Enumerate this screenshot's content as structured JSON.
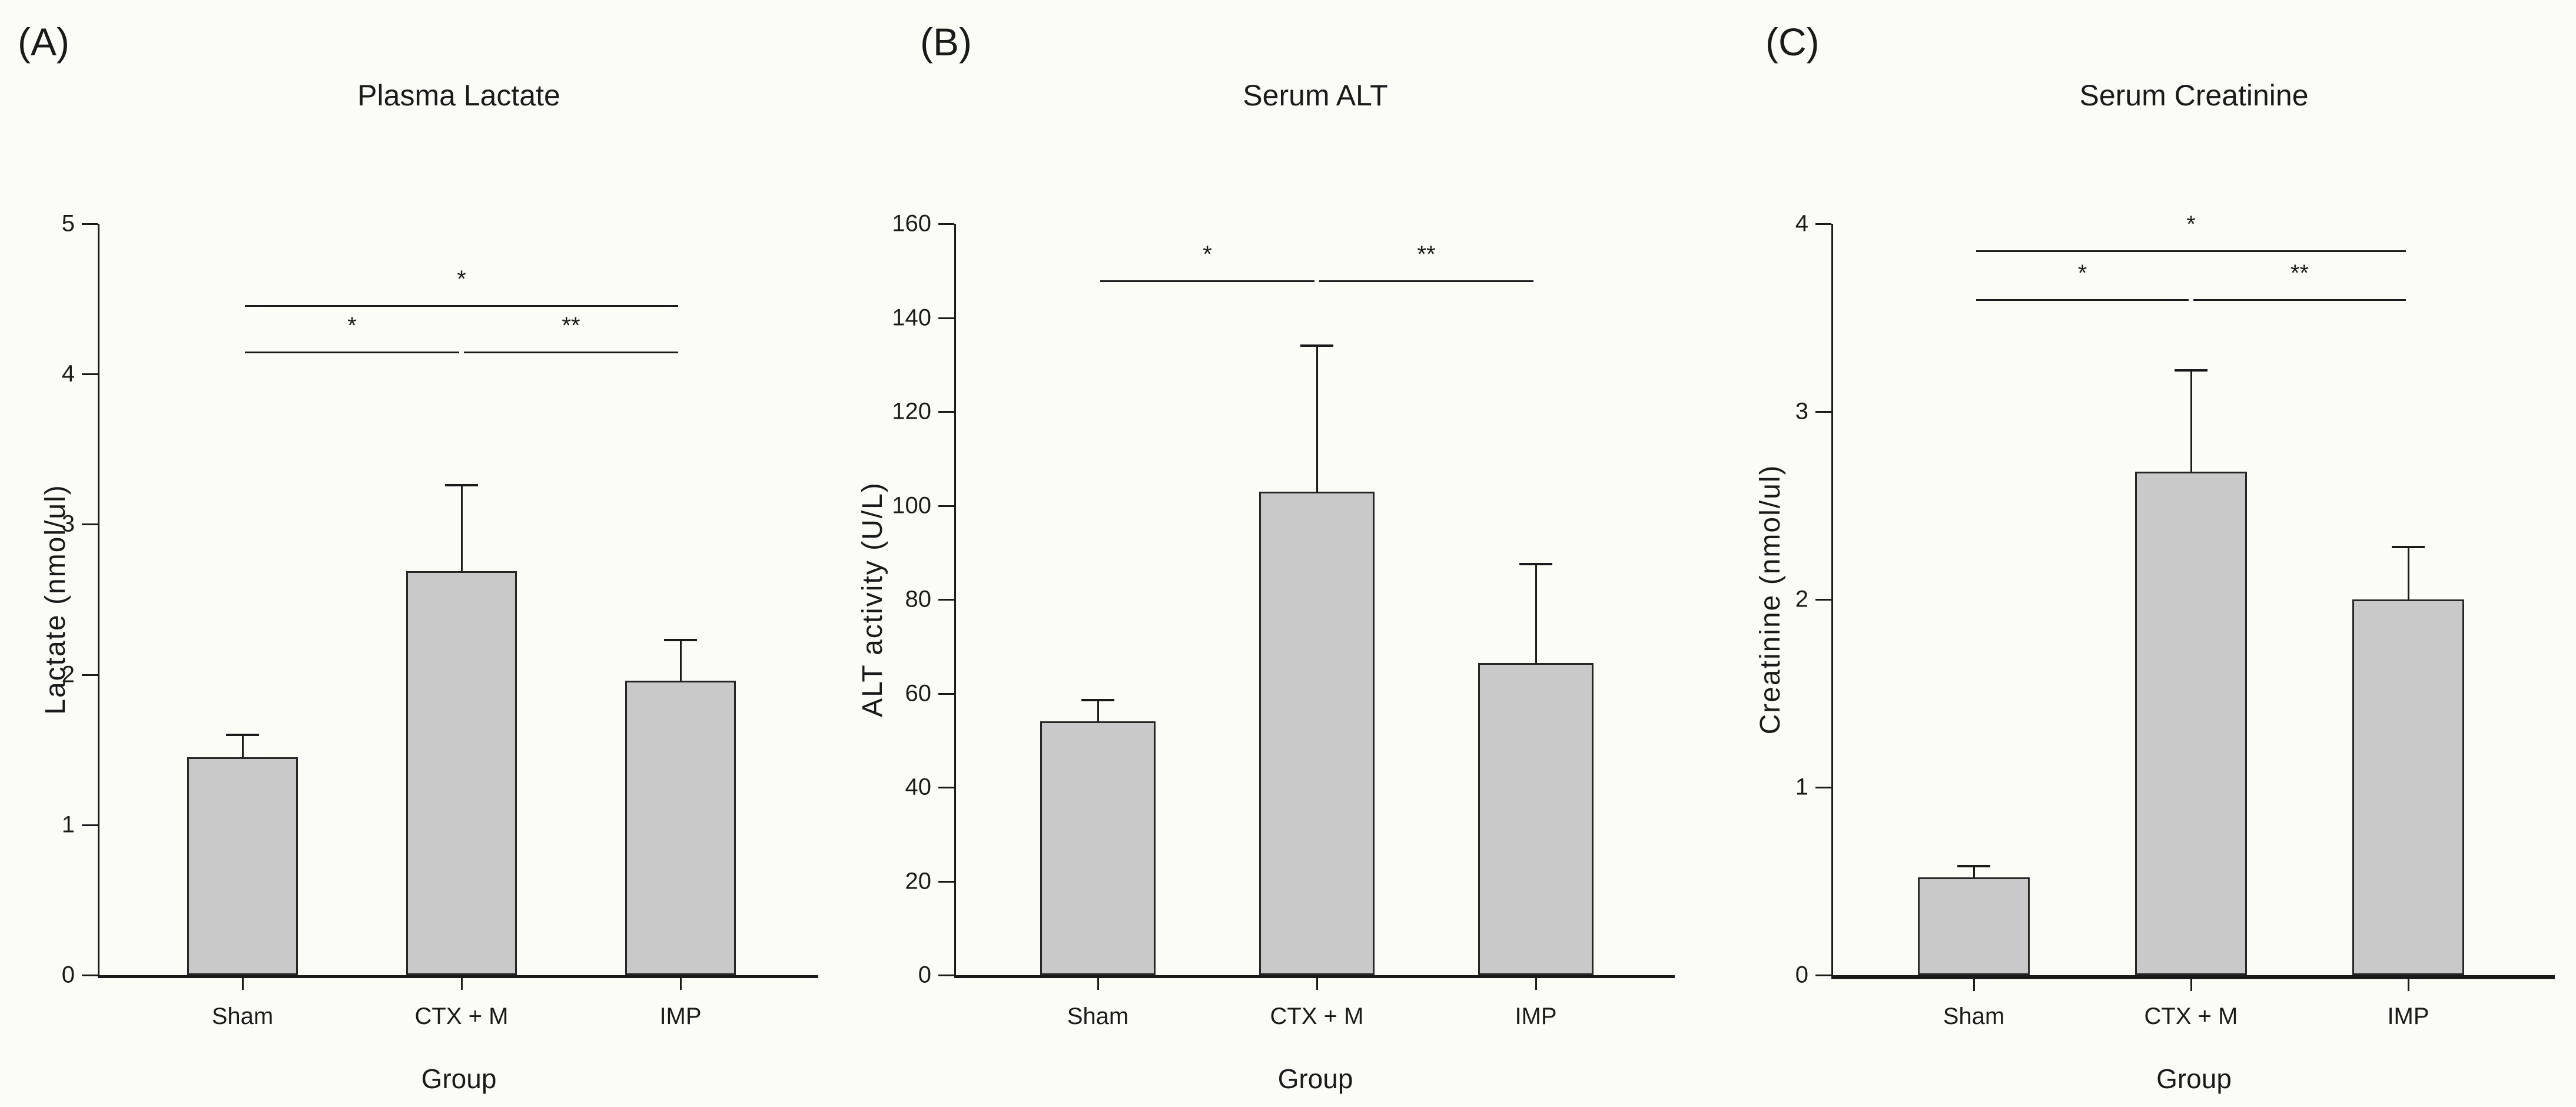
{
  "colors": {
    "background": "#fcfcf7",
    "plot_background": "#fffffb",
    "bar_fill": "#c9c9c9",
    "bar_border": "#262626",
    "axis": "#1a1a1a",
    "text": "#1a1a1a"
  },
  "chart_data": [
    {
      "type": "bar",
      "panel_label": "(A)",
      "title": "Plasma Lactate",
      "xlabel": "Group",
      "ylabel": "Lactate (nmol/ul)",
      "categories": [
        "Sham",
        "CTX + M",
        "IMP"
      ],
      "values": [
        1.45,
        2.69,
        1.96
      ],
      "error_upper": [
        1.6,
        3.26,
        2.23
      ],
      "ylim": [
        0,
        5
      ],
      "yticks": [
        0,
        1,
        2,
        3,
        4,
        5
      ],
      "grid": false,
      "legend": null,
      "significance": [
        {
          "from": "Sham",
          "to": "IMP",
          "label": "*",
          "y": 4.46
        },
        {
          "from": "Sham",
          "to": "CTX + M",
          "label": "*",
          "y": 4.15
        },
        {
          "from": "CTX + M",
          "to": "IMP",
          "label": "**",
          "y": 4.15
        }
      ]
    },
    {
      "type": "bar",
      "panel_label": "(B)",
      "title": "Serum ALT",
      "xlabel": "Group",
      "ylabel": "ALT activity (U/L)",
      "categories": [
        "Sham",
        "CTX + M",
        "IMP"
      ],
      "values": [
        54,
        103,
        66.5
      ],
      "error_upper": [
        58.5,
        134,
        87.5
      ],
      "ylim": [
        0,
        160
      ],
      "yticks": [
        0,
        20,
        40,
        60,
        80,
        100,
        120,
        140,
        160
      ],
      "grid": false,
      "legend": null,
      "significance": [
        {
          "from": "Sham",
          "to": "CTX + M",
          "label": "*",
          "y": 148
        },
        {
          "from": "CTX + M",
          "to": "IMP",
          "label": "**",
          "y": 148
        }
      ]
    },
    {
      "type": "bar",
      "panel_label": "(C)",
      "title": "Serum Creatinine",
      "xlabel": "Group",
      "ylabel": "Creatinine (nmol/ul)",
      "categories": [
        "Sham",
        "CTX + M",
        "IMP"
      ],
      "values": [
        0.52,
        2.68,
        2.0
      ],
      "error_upper": [
        0.58,
        3.22,
        2.28
      ],
      "ylim": [
        0,
        4
      ],
      "yticks": [
        0,
        1,
        2,
        3,
        4
      ],
      "grid": false,
      "legend": null,
      "significance": [
        {
          "from": "Sham",
          "to": "IMP",
          "label": "*",
          "y": 3.86
        },
        {
          "from": "Sham",
          "to": "CTX + M",
          "label": "*",
          "y": 3.6
        },
        {
          "from": "CTX + M",
          "to": "IMP",
          "label": "**",
          "y": 3.6
        }
      ]
    }
  ]
}
